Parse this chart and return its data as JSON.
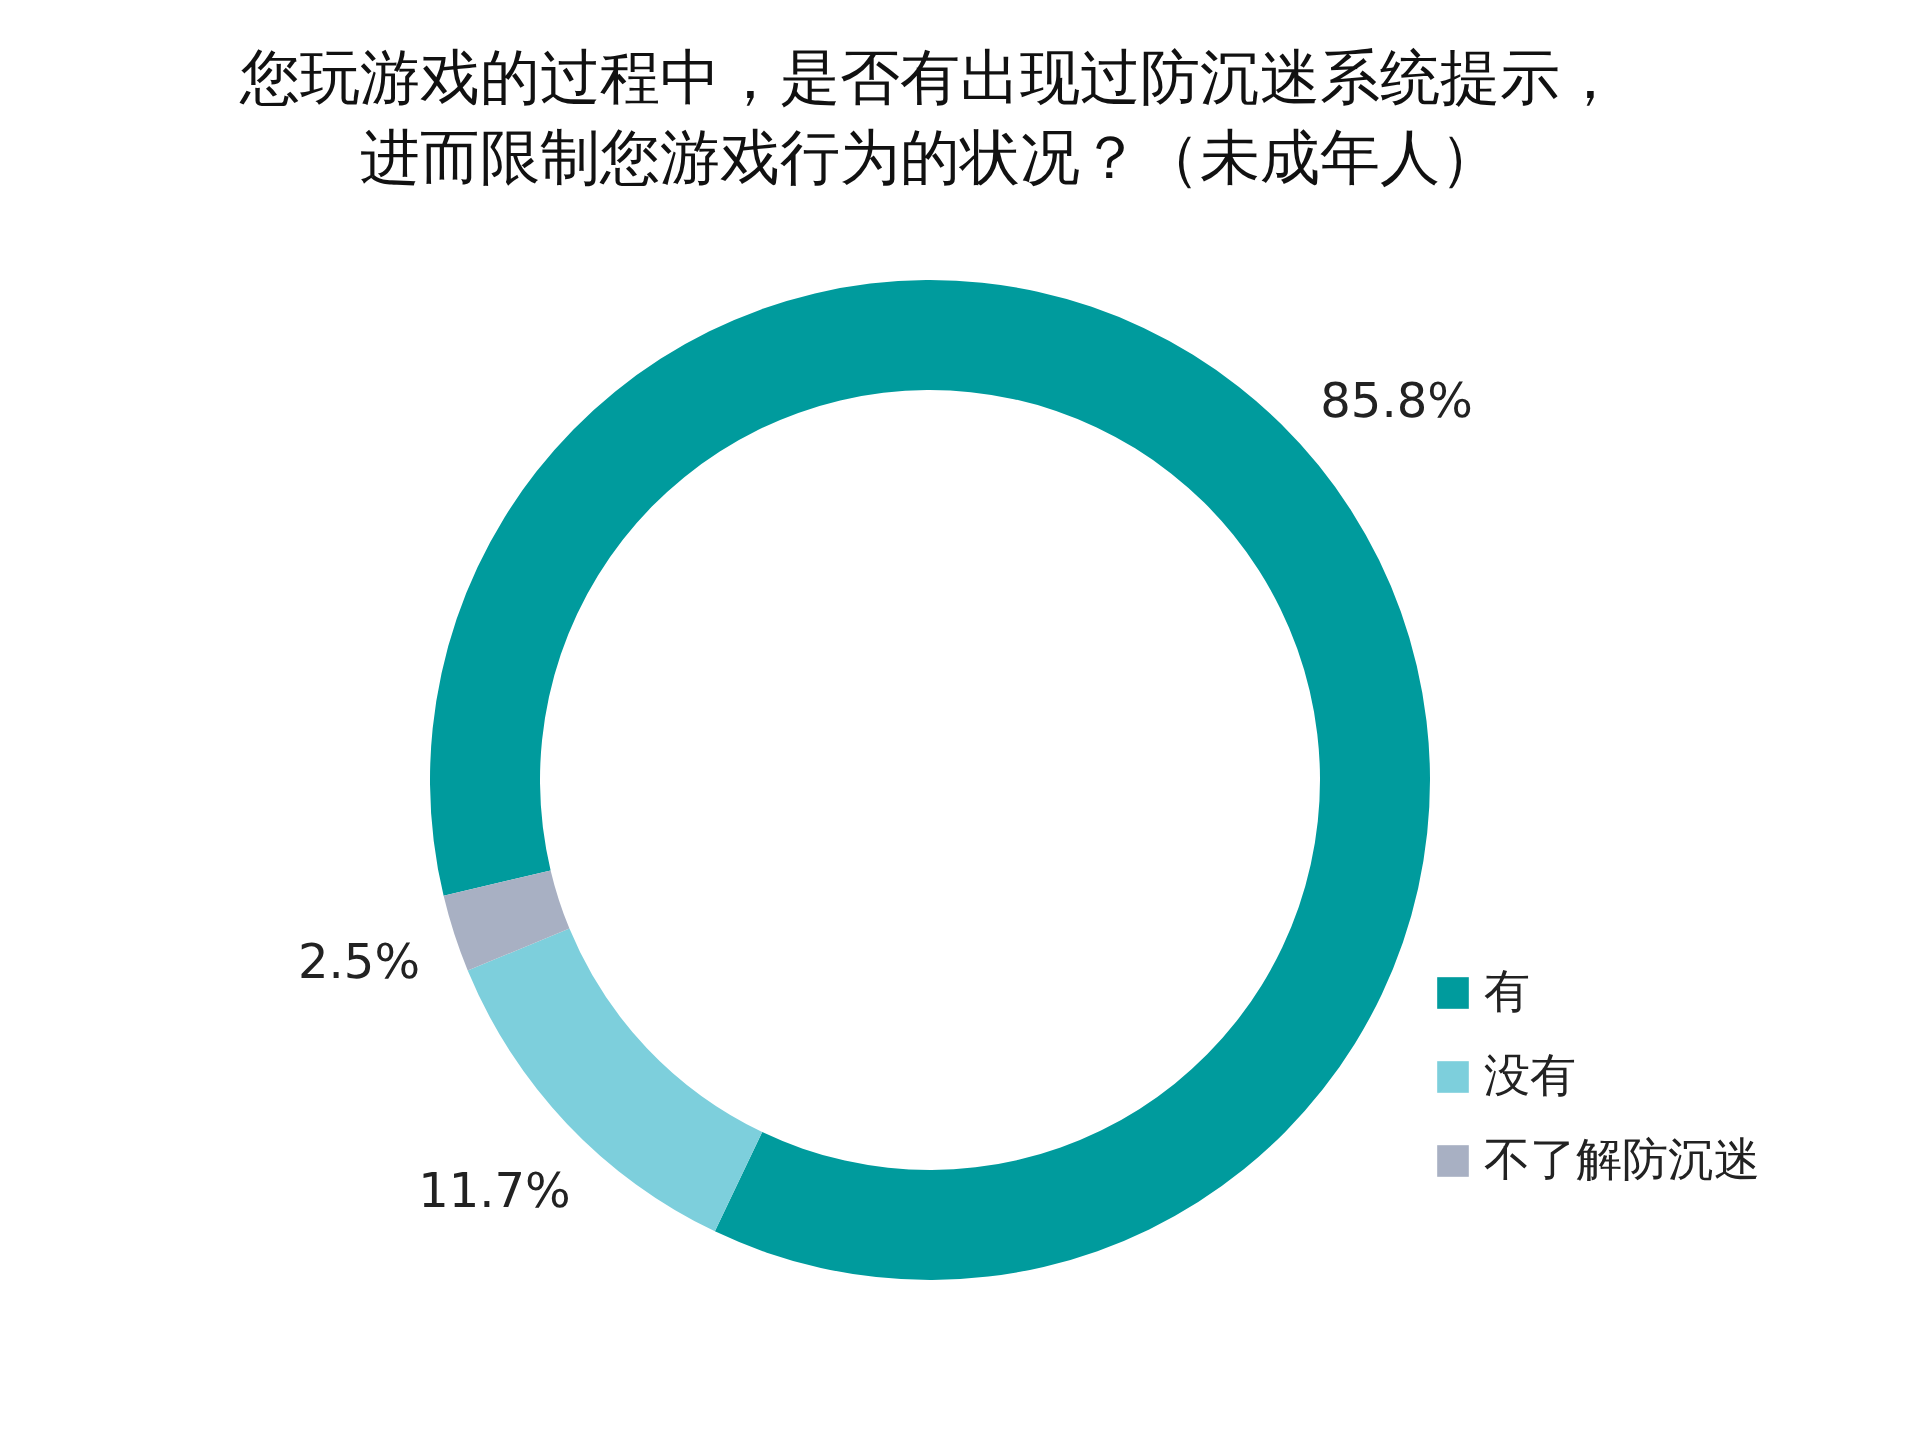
{
  "chart_data": {
    "type": "donut",
    "title": "您玩游戏的过程中，是否有出现过防沉迷系统提示，进而限制您游戏行为的状况？（未成年人）",
    "categories": [
      "有",
      "没有",
      "不了解防沉迷"
    ],
    "values": [
      85.8,
      11.7,
      2.5
    ],
    "colors": [
      "#009b9d",
      "#7dcfdc",
      "#a8b0c3"
    ],
    "value_labels": [
      "85.8%",
      "11.7%",
      "2.5%"
    ],
    "legend": "bottom right"
  }
}
